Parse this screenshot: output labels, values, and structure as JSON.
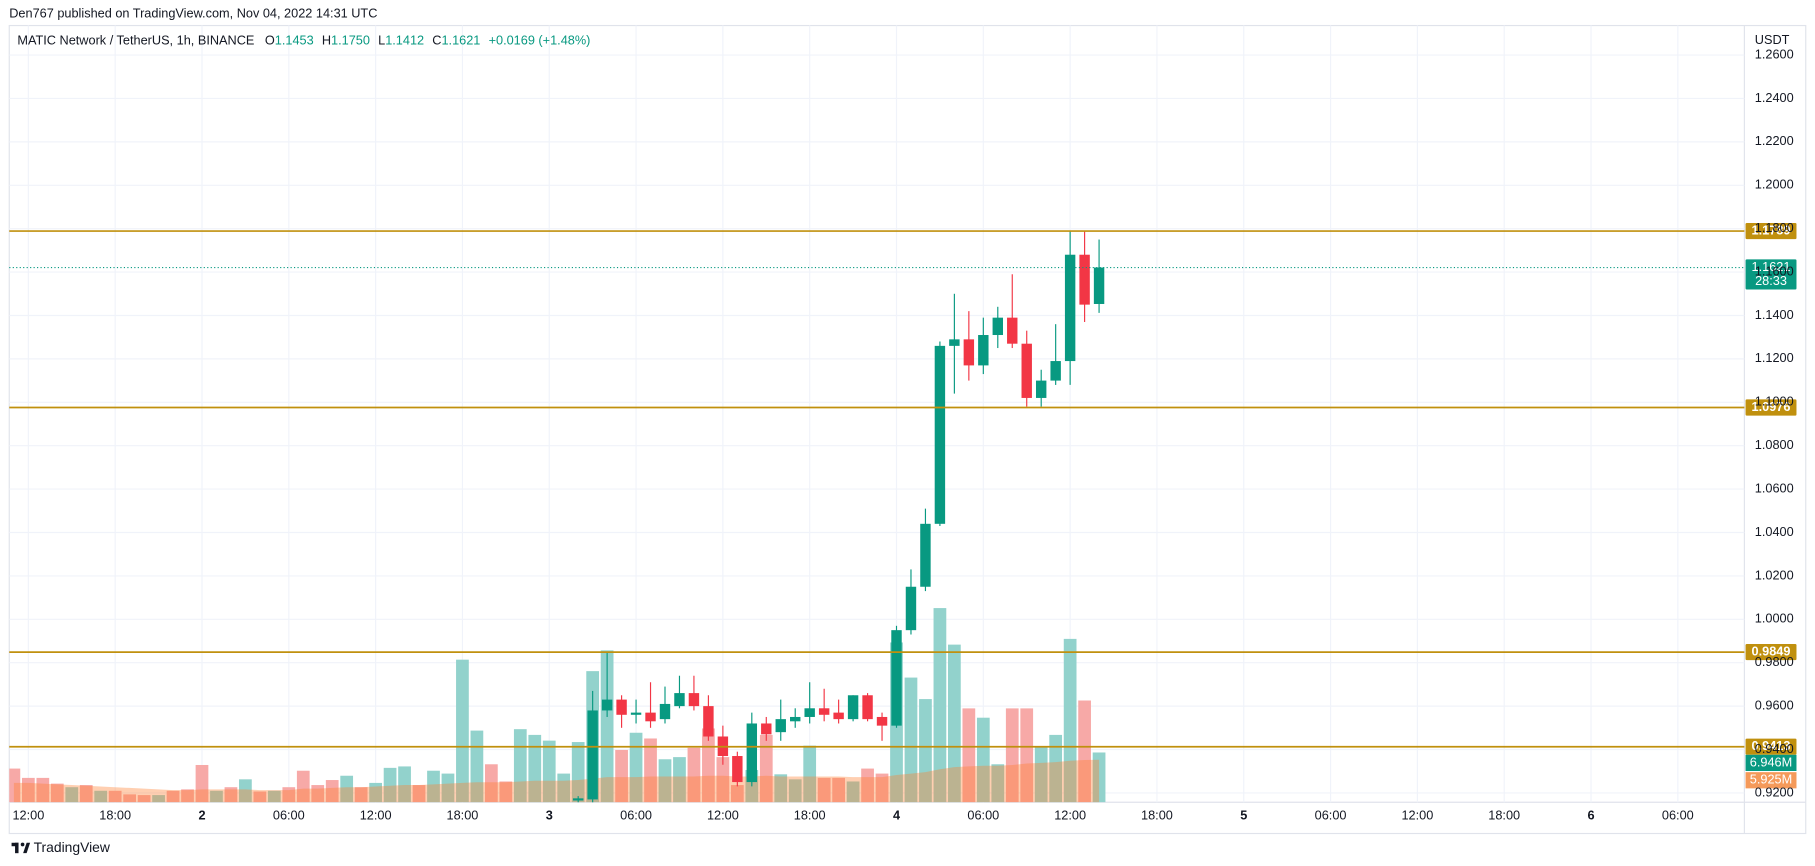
{
  "header": {
    "published": "Den767 published on TradingView.com, Nov 04, 2022 14:31 UTC",
    "footer": "TradingView"
  },
  "chart_data": {
    "type": "candlestick",
    "symbol": "MATIC Network / TetherUS, 1h, BINANCE",
    "ohlc_prefixes": [
      "O",
      "H",
      "L",
      "C"
    ],
    "ohlc_labels": [
      "1.1453",
      "1.1750",
      "1.1412",
      "1.1621"
    ],
    "change": "+0.0169 (+1.48%)",
    "currency": "USDT",
    "countdown": "28:33",
    "volume_label": "6.946M",
    "volume_ma_label": "5.925M",
    "categories": [
      null,
      "12:00",
      null,
      null,
      null,
      null,
      null,
      "18:00",
      null,
      null,
      null,
      null,
      null,
      "2",
      null,
      null,
      null,
      null,
      null,
      "06:00",
      null,
      null,
      null,
      null,
      null,
      "12:00",
      null,
      null,
      null,
      null,
      null,
      "18:00",
      null,
      null,
      null,
      null,
      null,
      "3",
      null,
      null,
      null,
      null,
      null,
      "06:00",
      null,
      null,
      null,
      null,
      null,
      "12:00",
      null,
      null,
      null,
      null,
      null,
      "18:00",
      null,
      null,
      null,
      null,
      null,
      "4",
      null,
      null,
      null,
      null,
      null,
      "06:00",
      null,
      null,
      null,
      null,
      null,
      "12:00",
      null,
      null,
      null,
      null,
      null,
      "18:00",
      null,
      null,
      null,
      null,
      null,
      "5",
      null,
      null,
      null,
      null,
      null,
      "06:00",
      null,
      null,
      null,
      null,
      null,
      "12:00",
      null,
      null,
      null,
      null,
      null,
      "18:00",
      null,
      null,
      null,
      null,
      null,
      "6",
      null,
      null,
      null,
      null,
      null,
      "06:00",
      null,
      null,
      null,
      null
    ],
    "open": [
      null,
      null,
      null,
      null,
      null,
      null,
      null,
      null,
      null,
      null,
      null,
      null,
      null,
      null,
      null,
      null,
      null,
      null,
      null,
      null,
      null,
      null,
      null,
      null,
      null,
      null,
      null,
      null,
      null,
      null,
      null,
      null,
      null,
      null,
      null,
      null,
      null,
      null,
      null,
      0.9165,
      0.917,
      0.958,
      0.963,
      0.956,
      0.957,
      0.954,
      0.96,
      0.966,
      0.96,
      0.946,
      0.937,
      0.925,
      0.952,
      0.948,
      0.953,
      0.955,
      0.959,
      0.957,
      0.954,
      0.965,
      0.955,
      0.951,
      0.995,
      1.015,
      1.044,
      1.126,
      1.129,
      1.117,
      1.131,
      1.139,
      1.127,
      1.102,
      1.11,
      1.119,
      1.168,
      1.1453,
      null,
      null,
      null,
      null,
      null,
      null,
      null,
      null,
      null,
      null,
      null,
      null,
      null,
      null,
      null,
      null,
      null,
      null,
      null,
      null,
      null,
      null,
      null,
      null,
      null,
      null,
      null,
      null,
      null,
      null,
      null,
      null,
      null,
      null,
      null,
      null,
      null,
      null,
      null,
      null,
      null,
      null,
      null,
      null
    ],
    "high": [
      null,
      null,
      null,
      null,
      null,
      null,
      null,
      null,
      null,
      null,
      null,
      null,
      null,
      null,
      null,
      null,
      null,
      null,
      null,
      null,
      null,
      null,
      null,
      null,
      null,
      null,
      null,
      null,
      null,
      null,
      null,
      null,
      null,
      null,
      null,
      null,
      null,
      null,
      null,
      0.9185,
      0.967,
      0.985,
      0.965,
      0.963,
      0.971,
      0.969,
      0.974,
      0.974,
      0.965,
      0.951,
      0.939,
      0.957,
      0.955,
      0.963,
      0.959,
      0.971,
      0.968,
      0.963,
      0.965,
      0.966,
      0.957,
      0.997,
      1.023,
      1.051,
      1.128,
      1.15,
      1.142,
      1.139,
      1.144,
      1.159,
      1.133,
      1.115,
      1.136,
      1.179,
      1.179,
      1.175,
      null,
      null,
      null,
      null,
      null,
      null,
      null,
      null,
      null,
      null,
      null,
      null,
      null,
      null,
      null,
      null,
      null,
      null,
      null,
      null,
      null,
      null,
      null,
      null,
      null,
      null,
      null,
      null,
      null,
      null,
      null,
      null,
      null,
      null,
      null,
      null,
      null,
      null,
      null,
      null,
      null,
      null,
      null,
      null
    ],
    "low": [
      null,
      null,
      null,
      null,
      null,
      null,
      null,
      null,
      null,
      null,
      null,
      null,
      null,
      null,
      null,
      null,
      null,
      null,
      null,
      null,
      null,
      null,
      null,
      null,
      null,
      null,
      null,
      null,
      null,
      null,
      null,
      null,
      null,
      null,
      null,
      null,
      null,
      null,
      null,
      0.913,
      0.914,
      0.955,
      0.95,
      0.952,
      0.95,
      0.952,
      0.959,
      0.958,
      0.944,
      0.933,
      0.923,
      0.923,
      0.944,
      0.944,
      0.95,
      0.952,
      0.953,
      0.952,
      0.953,
      0.953,
      0.944,
      0.95,
      0.993,
      1.013,
      1.043,
      1.104,
      1.11,
      1.113,
      1.125,
      1.125,
      1.098,
      1.098,
      1.108,
      1.108,
      1.137,
      1.1412,
      null,
      null,
      null,
      null,
      null,
      null,
      null,
      null,
      null,
      null,
      null,
      null,
      null,
      null,
      null,
      null,
      null,
      null,
      null,
      null,
      null,
      null,
      null,
      null,
      null,
      null,
      null,
      null,
      null,
      null,
      null,
      null,
      null,
      null,
      null,
      null,
      null,
      null,
      null,
      null,
      null,
      null,
      null,
      null
    ],
    "close": [
      null,
      null,
      null,
      null,
      null,
      null,
      null,
      null,
      null,
      null,
      null,
      null,
      null,
      null,
      null,
      null,
      null,
      null,
      null,
      null,
      null,
      null,
      null,
      null,
      null,
      null,
      null,
      null,
      null,
      null,
      null,
      null,
      null,
      null,
      null,
      null,
      null,
      null,
      null,
      0.9175,
      0.958,
      0.963,
      0.956,
      0.957,
      0.953,
      0.961,
      0.966,
      0.96,
      0.946,
      0.937,
      0.925,
      0.952,
      0.947,
      0.954,
      0.955,
      0.959,
      0.956,
      0.954,
      0.965,
      0.954,
      0.951,
      0.995,
      1.015,
      1.044,
      1.126,
      1.129,
      1.117,
      1.131,
      1.139,
      1.127,
      1.102,
      1.11,
      1.119,
      1.168,
      1.145,
      1.1621,
      null,
      null,
      null,
      null,
      null,
      null,
      null,
      null,
      null,
      null,
      null,
      null,
      null,
      null,
      null,
      null,
      null,
      null,
      null,
      null,
      null,
      null,
      null,
      null,
      null,
      null,
      null,
      null,
      null,
      null,
      null,
      null,
      null,
      null,
      null,
      null,
      null,
      null,
      null,
      null,
      null,
      null,
      null,
      null
    ],
    "volume": [
      4.7,
      3.4,
      3.4,
      2.6,
      2.1,
      2.4,
      1.6,
      1.6,
      1.1,
      1.0,
      1.0,
      1.6,
      1.8,
      5.2,
      1.6,
      2.1,
      3.2,
      1.5,
      1.6,
      2.1,
      4.4,
      2.4,
      3.1,
      3.7,
      2.1,
      2.7,
      4.8,
      5.0,
      2.4,
      4.4,
      4.0,
      19.9,
      10.0,
      5.3,
      2.9,
      10.2,
      9.4,
      8.6,
      4.0,
      8.4,
      18.3,
      21.2,
      7.3,
      9.7,
      8.9,
      6.0,
      6.3,
      7.6,
      10.3,
      6.3,
      2.4,
      4.5,
      9.4,
      3.9,
      3.2,
      7.9,
      3.4,
      3.4,
      2.9,
      4.7,
      4.0,
      22.3,
      17.4,
      14.4,
      27.1,
      22.0,
      13.1,
      11.8,
      5.3,
      13.1,
      13.1,
      7.8,
      9.4,
      22.8,
      14.2,
      6.946,
      null,
      null,
      null,
      null,
      null,
      null,
      null,
      null,
      null,
      null,
      null,
      null,
      null,
      null,
      null,
      null,
      null,
      null,
      null,
      null,
      null,
      null,
      null,
      null,
      null,
      null,
      null,
      null,
      null,
      null,
      null,
      null,
      null,
      null,
      null,
      null,
      null,
      null,
      null,
      null,
      null,
      null,
      null,
      null
    ],
    "volume_ma": [
      2.7,
      2.7,
      2.6,
      2.5,
      2.4,
      2.3,
      2.2,
      2.1,
      2.0,
      1.9,
      1.8,
      1.7,
      1.7,
      1.8,
      1.8,
      1.8,
      1.8,
      1.7,
      1.7,
      1.7,
      1.9,
      1.9,
      2.0,
      2.1,
      2.1,
      2.2,
      2.3,
      2.4,
      2.4,
      2.5,
      2.6,
      2.7,
      2.8,
      2.8,
      2.8,
      2.9,
      3.0,
      3.0,
      3.0,
      3.1,
      3.3,
      3.5,
      3.5,
      3.5,
      3.6,
      3.6,
      3.6,
      3.6,
      3.7,
      3.7,
      3.6,
      3.6,
      3.7,
      3.6,
      3.6,
      3.6,
      3.6,
      3.6,
      3.5,
      3.5,
      3.5,
      3.8,
      4.0,
      4.2,
      4.6,
      4.9,
      5.0,
      5.1,
      5.1,
      5.2,
      5.4,
      5.5,
      5.6,
      5.8,
      5.9,
      5.925,
      null,
      null,
      null,
      null,
      null,
      null,
      null,
      null,
      null,
      null,
      null,
      null,
      null,
      null,
      null,
      null,
      null,
      null,
      null,
      null,
      null,
      null,
      null,
      null,
      null,
      null,
      null,
      null,
      null,
      null,
      null,
      null,
      null,
      null,
      null,
      null,
      null,
      null,
      null,
      null,
      null,
      null,
      null,
      null
    ],
    "volume_colors": [
      "#f7a9a7",
      "#f7a9a7",
      "#f7a9a7",
      "#f7a9a7",
      "#92d2cc",
      "#f7a9a7",
      "#92d2cc",
      "#f7a9a7",
      "#f7a9a7",
      "#f7a9a7",
      "#92d2cc",
      "#f7a9a7",
      "#f7a9a7",
      "#f7a9a7",
      "#92d2cc",
      "#f7a9a7",
      "#92d2cc",
      "#f7a9a7",
      "#92d2cc",
      "#f7a9a7",
      "#f7a9a7",
      "#f7a9a7",
      "#f7a9a7",
      "#92d2cc",
      "#f7a9a7",
      "#92d2cc",
      "#92d2cc",
      "#92d2cc",
      "#f7a9a7",
      "#92d2cc",
      "#92d2cc",
      "#92d2cc",
      "#92d2cc",
      "#f7a9a7",
      "#f7a9a7",
      "#92d2cc",
      "#92d2cc",
      "#92d2cc",
      "#92d2cc",
      "#92d2cc",
      "#92d2cc",
      "#92d2cc",
      "#f7a9a7",
      "#92d2cc",
      "#f7a9a7",
      "#92d2cc",
      "#92d2cc",
      "#f7a9a7",
      "#f7a9a7",
      "#f7a9a7",
      "#f7a9a7",
      "#92d2cc",
      "#f7a9a7",
      "#92d2cc",
      "#92d2cc",
      "#92d2cc",
      "#f7a9a7",
      "#f7a9a7",
      "#92d2cc",
      "#f7a9a7",
      "#f7a9a7",
      "#92d2cc",
      "#92d2cc",
      "#92d2cc",
      "#92d2cc",
      "#92d2cc",
      "#f7a9a7",
      "#92d2cc",
      "#92d2cc",
      "#f7a9a7",
      "#f7a9a7",
      "#92d2cc",
      "#92d2cc",
      "#92d2cc",
      "#f7a9a7",
      "#92d2cc",
      null,
      null,
      null,
      null,
      null,
      null,
      null,
      null,
      null,
      null,
      null,
      null,
      null,
      null,
      null,
      null,
      null,
      null,
      null,
      null,
      null,
      null,
      null,
      null,
      null,
      null,
      null,
      null,
      null,
      null,
      null,
      null,
      null,
      null,
      null,
      null,
      null,
      null,
      null,
      null,
      null,
      null,
      null,
      null
    ],
    "levels": [
      1.1789,
      1.0976,
      0.9849,
      0.9413
    ],
    "level_color": "#c0900e",
    "up_color": "#089981",
    "down_color": "#f23645",
    "volume_ma_color": "rgba(255,128,50,0.38)",
    "volume_ma_label_color": "#f59a5a",
    "ylim": [
      0.9157,
      1.2736
    ],
    "vlim": [
      0,
      108.4
    ],
    "yticks": [
      {
        "value": 0.92,
        "label": "0.9200"
      },
      {
        "value": 0.94,
        "label": "0.9400"
      },
      {
        "value": 0.96,
        "label": "0.9600"
      },
      {
        "value": 0.98,
        "label": "0.9800"
      },
      {
        "value": 1.0,
        "label": "1.0000"
      },
      {
        "value": 1.02,
        "label": "1.0200"
      },
      {
        "value": 1.04,
        "label": "1.0400"
      },
      {
        "value": 1.06,
        "label": "1.0600"
      },
      {
        "value": 1.08,
        "label": "1.0800"
      },
      {
        "value": 1.1,
        "label": "1.1000"
      },
      {
        "value": 1.12,
        "label": "1.1200"
      },
      {
        "value": 1.14,
        "label": "1.1400"
      },
      {
        "value": 1.16,
        "label": "1.1600"
      },
      {
        "value": 1.18,
        "label": "1.1800"
      },
      {
        "value": 1.2,
        "label": "1.2000"
      },
      {
        "value": 1.22,
        "label": "1.2200"
      },
      {
        "value": 1.24,
        "label": "1.2400"
      },
      {
        "value": 1.26,
        "label": "1.2600"
      }
    ],
    "grid": true
  }
}
